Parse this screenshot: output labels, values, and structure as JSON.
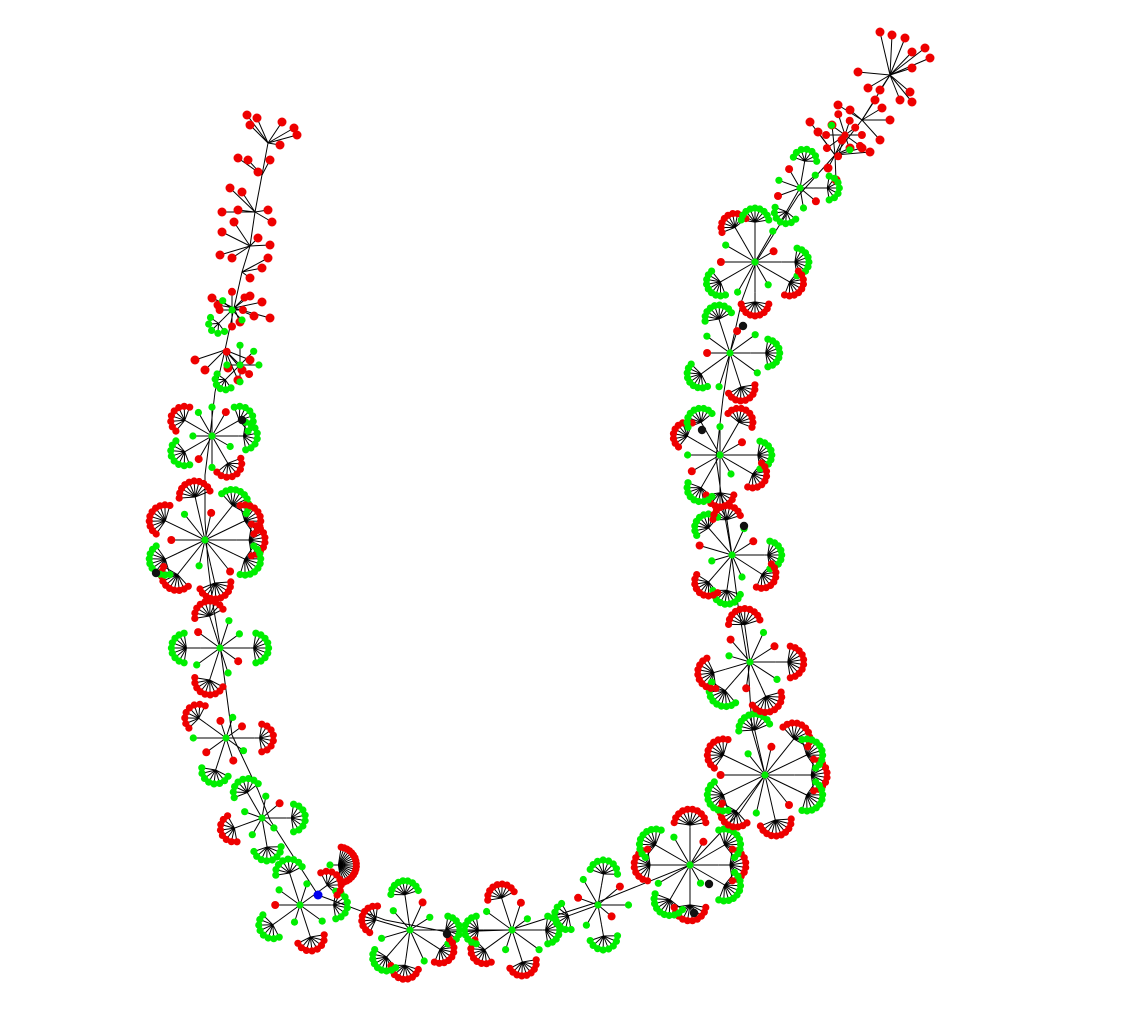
{
  "diagram": {
    "type": "tree-network",
    "background": "#ffffff",
    "edge_color": "#000000",
    "node_colors": {
      "green": "#00ee00",
      "red": "#ee0000",
      "black": "#111111",
      "blue": "#0000ee"
    }
  }
}
